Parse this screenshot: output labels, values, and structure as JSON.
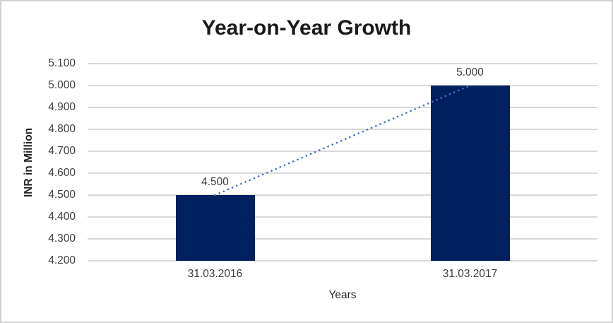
{
  "chart_data": {
    "type": "bar",
    "title": "Year-on-Year Growth",
    "xlabel": "Years",
    "ylabel": "INR in Million",
    "categories": [
      "31.03.2016",
      "31.03.2017"
    ],
    "series": [
      {
        "name": "INR in Million",
        "values": [
          4.5,
          5.0
        ]
      }
    ],
    "values": [
      4.5,
      5.0
    ],
    "data_labels": [
      "4.500",
      "5.000"
    ],
    "y_ticks": [
      "5.100",
      "5.000",
      "4.900",
      "4.800",
      "4.700",
      "4.600",
      "4.500",
      "4.400",
      "4.300",
      "4.200"
    ],
    "ylim": [
      4.2,
      5.1
    ],
    "tick_step": 0.1,
    "grid": true,
    "legend": "none",
    "trendline": {
      "style": "dotted",
      "from": [
        0,
        4.5
      ],
      "to": [
        1,
        5.0
      ]
    },
    "colors": {
      "bar": "#002060",
      "gridline": "#d9d9d9",
      "trendline": "#4472c4",
      "text": "#3f3f3f",
      "title": "#1a1a1a",
      "border": "#d2d2d2"
    }
  }
}
